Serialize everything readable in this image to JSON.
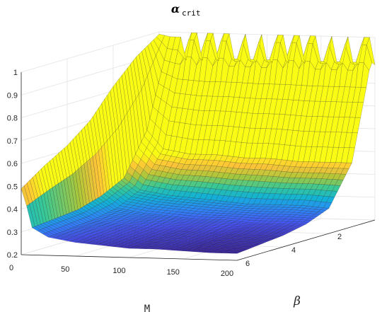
{
  "chart_data": {
    "type": "surface",
    "title": "α",
    "title_subscript": "crit",
    "xlabel": "M",
    "ylabel": "β",
    "zlabel": "",
    "xlim": [
      0,
      200
    ],
    "ylim": [
      0,
      6
    ],
    "zlim": [
      0.2,
      1.0
    ],
    "xticks": [
      "0",
      "50",
      "100",
      "150",
      "200"
    ],
    "yticks": [
      "0",
      "2",
      "4",
      "6"
    ],
    "zticks": [
      "0.2",
      "0.3",
      "0.4",
      "0.5",
      "0.6",
      "0.7",
      "0.8",
      "0.9",
      "1"
    ],
    "colormap": "parula",
    "grid": true,
    "M_samples": [
      1,
      10,
      25,
      50,
      75,
      100,
      125,
      150,
      175,
      200
    ],
    "beta_samples": [
      0,
      1,
      2,
      3,
      4,
      5,
      6
    ],
    "values_description_rows": "rows follow M_samples, columns follow beta_samples",
    "z_values": [
      [
        0.99,
        0.92,
        0.82,
        0.7,
        0.62,
        0.56,
        0.49
      ],
      [
        0.98,
        0.6,
        0.42,
        0.37,
        0.34,
        0.33,
        0.32
      ],
      [
        0.98,
        0.52,
        0.37,
        0.32,
        0.3,
        0.29,
        0.28
      ],
      [
        0.98,
        0.5,
        0.35,
        0.3,
        0.28,
        0.27,
        0.26
      ],
      [
        0.98,
        0.5,
        0.34,
        0.29,
        0.27,
        0.26,
        0.25
      ],
      [
        0.98,
        0.49,
        0.33,
        0.28,
        0.26,
        0.25,
        0.24
      ],
      [
        0.98,
        0.49,
        0.32,
        0.28,
        0.26,
        0.25,
        0.24
      ],
      [
        0.98,
        0.48,
        0.32,
        0.27,
        0.25,
        0.24,
        0.235
      ],
      [
        0.98,
        0.48,
        0.32,
        0.27,
        0.25,
        0.24,
        0.23
      ],
      [
        0.98,
        0.48,
        0.31,
        0.27,
        0.25,
        0.24,
        0.23
      ]
    ]
  }
}
